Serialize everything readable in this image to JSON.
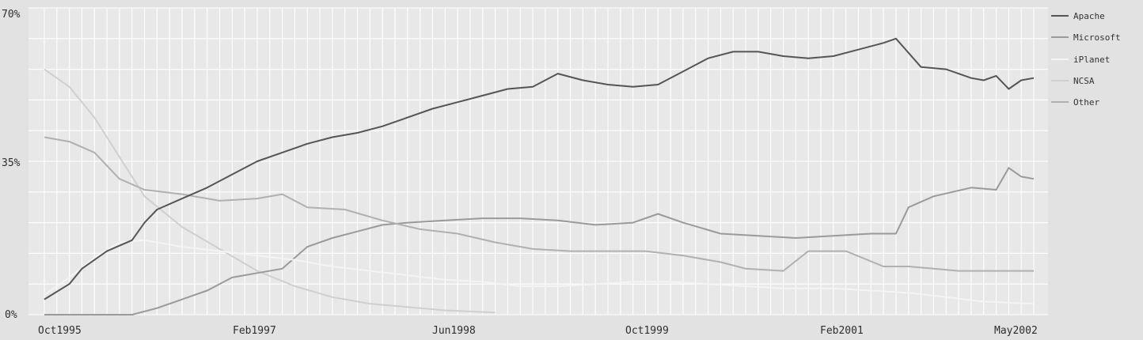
{
  "chart_data": {
    "type": "line",
    "title": "",
    "xlabel": "",
    "ylabel": "",
    "ylim": [
      0,
      70
    ],
    "y_ticks": [
      "0%",
      "35%",
      "70%"
    ],
    "x_ticks": [
      "Oct1995",
      "Feb1997",
      "Jun1998",
      "Oct1999",
      "Feb2001",
      "May2002"
    ],
    "grid": true,
    "legend_position": "right",
    "x_range": [
      "1995-10",
      "2002-05"
    ],
    "series": [
      {
        "name": "Apache",
        "color": "#555555",
        "points": [
          [
            "1995-10",
            3.5
          ],
          [
            "1995-12",
            7
          ],
          [
            "1996-01",
            10.5
          ],
          [
            "1996-03",
            14.5
          ],
          [
            "1996-05",
            17
          ],
          [
            "1996-06",
            21
          ],
          [
            "1996-07",
            24
          ],
          [
            "1996-09",
            26.5
          ],
          [
            "1996-11",
            29
          ],
          [
            "1997-01",
            32
          ],
          [
            "1997-03",
            35
          ],
          [
            "1997-05",
            37
          ],
          [
            "1997-07",
            39
          ],
          [
            "1997-09",
            40.5
          ],
          [
            "1997-11",
            41.5
          ],
          [
            "1998-01",
            43
          ],
          [
            "1998-03",
            45
          ],
          [
            "1998-05",
            47
          ],
          [
            "1998-07",
            48.5
          ],
          [
            "1998-09",
            50
          ],
          [
            "1998-11",
            51.5
          ],
          [
            "1999-01",
            52
          ],
          [
            "1999-03",
            55
          ],
          [
            "1999-05",
            53.5
          ],
          [
            "1999-07",
            52.5
          ],
          [
            "1999-09",
            52
          ],
          [
            "1999-11",
            52.5
          ],
          [
            "2000-01",
            55.5
          ],
          [
            "2000-03",
            58.5
          ],
          [
            "2000-05",
            60
          ],
          [
            "2000-07",
            60
          ],
          [
            "2000-09",
            59
          ],
          [
            "2000-11",
            58.5
          ],
          [
            "2001-01",
            59
          ],
          [
            "2001-03",
            60.5
          ],
          [
            "2001-05",
            62
          ],
          [
            "2001-06",
            63
          ],
          [
            "2001-08",
            56.5
          ],
          [
            "2001-10",
            56
          ],
          [
            "2001-12",
            54
          ],
          [
            "2002-01",
            53.5
          ],
          [
            "2002-02",
            54.5
          ],
          [
            "2002-03",
            51.5
          ],
          [
            "2002-04",
            53.5
          ],
          [
            "2002-05",
            54
          ]
        ]
      },
      {
        "name": "Microsoft",
        "color": "#9a9a9a",
        "points": [
          [
            "1995-10",
            0
          ],
          [
            "1996-05",
            0
          ],
          [
            "1996-07",
            1.5
          ],
          [
            "1996-09",
            3.5
          ],
          [
            "1996-11",
            5.5
          ],
          [
            "1997-01",
            8.5
          ],
          [
            "1997-03",
            9.5
          ],
          [
            "1997-05",
            10.5
          ],
          [
            "1997-07",
            15.5
          ],
          [
            "1997-09",
            17.5
          ],
          [
            "1997-11",
            19
          ],
          [
            "1998-01",
            20.5
          ],
          [
            "1998-03",
            21
          ],
          [
            "1998-06",
            21.5
          ],
          [
            "1998-09",
            22
          ],
          [
            "1998-12",
            22
          ],
          [
            "1999-03",
            21.5
          ],
          [
            "1999-06",
            20.5
          ],
          [
            "1999-09",
            21
          ],
          [
            "1999-11",
            23
          ],
          [
            "2000-01",
            21
          ],
          [
            "2000-04",
            18.5
          ],
          [
            "2000-07",
            18
          ],
          [
            "2000-10",
            17.5
          ],
          [
            "2001-01",
            18
          ],
          [
            "2001-04",
            18.5
          ],
          [
            "2001-06",
            18.5
          ],
          [
            "2001-07",
            24.5
          ],
          [
            "2001-09",
            27
          ],
          [
            "2001-12",
            29
          ],
          [
            "2002-02",
            28.5
          ],
          [
            "2002-03",
            33.5
          ],
          [
            "2002-04",
            31.5
          ],
          [
            "2002-05",
            31
          ]
        ]
      },
      {
        "name": "iPlanet",
        "color": "#f4f4f4",
        "points": [
          [
            "1995-10",
            4.5
          ],
          [
            "1995-12",
            8.5
          ],
          [
            "1996-02",
            13
          ],
          [
            "1996-04",
            16.5
          ],
          [
            "1996-06",
            17
          ],
          [
            "1996-09",
            15.5
          ],
          [
            "1996-12",
            14.5
          ],
          [
            "1997-03",
            13.5
          ],
          [
            "1997-06",
            12.5
          ],
          [
            "1997-09",
            11
          ],
          [
            "1997-12",
            10
          ],
          [
            "1998-03",
            9
          ],
          [
            "1998-06",
            8
          ],
          [
            "1998-09",
            7.5
          ],
          [
            "1998-12",
            6.5
          ],
          [
            "1999-03",
            6.5
          ],
          [
            "1999-06",
            7
          ],
          [
            "1999-09",
            7.5
          ],
          [
            "1999-12",
            7.5
          ],
          [
            "2000-03",
            7
          ],
          [
            "2000-06",
            6.5
          ],
          [
            "2000-09",
            6
          ],
          [
            "2001-01",
            6
          ],
          [
            "2001-04",
            5.5
          ],
          [
            "2001-07",
            5
          ],
          [
            "2001-10",
            4
          ],
          [
            "2002-01",
            3
          ],
          [
            "2002-05",
            2.5
          ]
        ]
      },
      {
        "name": "NCSA",
        "color": "#cfcfcf",
        "points": [
          [
            "1995-10",
            56
          ],
          [
            "1995-12",
            52
          ],
          [
            "1996-02",
            45
          ],
          [
            "1996-04",
            36
          ],
          [
            "1996-06",
            27
          ],
          [
            "1996-09",
            20
          ],
          [
            "1996-12",
            15
          ],
          [
            "1997-03",
            10
          ],
          [
            "1997-06",
            6.5
          ],
          [
            "1997-09",
            4
          ],
          [
            "1997-12",
            2.5
          ],
          [
            "1998-06",
            1
          ],
          [
            "1998-10",
            0.5
          ]
        ]
      },
      {
        "name": "Other",
        "color": "#b0b0b0",
        "points": [
          [
            "1995-10",
            40.5
          ],
          [
            "1995-12",
            39.5
          ],
          [
            "1996-02",
            37
          ],
          [
            "1996-04",
            31
          ],
          [
            "1996-06",
            28.5
          ],
          [
            "1996-09",
            27.5
          ],
          [
            "1996-12",
            26
          ],
          [
            "1997-03",
            26.5
          ],
          [
            "1997-05",
            27.5
          ],
          [
            "1997-07",
            24.5
          ],
          [
            "1997-10",
            24
          ],
          [
            "1998-01",
            21.5
          ],
          [
            "1998-04",
            19.5
          ],
          [
            "1998-07",
            18.5
          ],
          [
            "1998-10",
            16.5
          ],
          [
            "1999-01",
            15
          ],
          [
            "1999-04",
            14.5
          ],
          [
            "1999-07",
            14.5
          ],
          [
            "1999-10",
            14.5
          ],
          [
            "2000-01",
            13.5
          ],
          [
            "2000-04",
            12
          ],
          [
            "2000-06",
            10.5
          ],
          [
            "2000-09",
            10
          ],
          [
            "2000-11",
            14.5
          ],
          [
            "2001-02",
            14.5
          ],
          [
            "2001-05",
            11
          ],
          [
            "2001-07",
            11
          ],
          [
            "2001-09",
            10.5
          ],
          [
            "2001-11",
            10
          ],
          [
            "2002-01",
            10
          ],
          [
            "2002-05",
            10
          ]
        ]
      }
    ]
  }
}
